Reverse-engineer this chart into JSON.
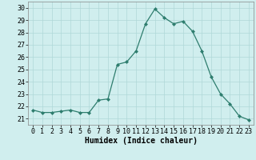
{
  "x": [
    0,
    1,
    2,
    3,
    4,
    5,
    6,
    7,
    8,
    9,
    10,
    11,
    12,
    13,
    14,
    15,
    16,
    17,
    18,
    19,
    20,
    21,
    22,
    23
  ],
  "y": [
    21.7,
    21.5,
    21.5,
    21.6,
    21.7,
    21.5,
    21.5,
    22.5,
    22.6,
    25.4,
    25.6,
    26.5,
    28.7,
    29.9,
    29.2,
    28.7,
    28.9,
    28.1,
    26.5,
    24.4,
    23.0,
    22.2,
    21.2,
    20.9
  ],
  "xlabel": "Humidex (Indice chaleur)",
  "xlim": [
    -0.5,
    23.5
  ],
  "ylim": [
    20.5,
    30.5
  ],
  "yticks": [
    21,
    22,
    23,
    24,
    25,
    26,
    27,
    28,
    29,
    30
  ],
  "xticks": [
    0,
    1,
    2,
    3,
    4,
    5,
    6,
    7,
    8,
    9,
    10,
    11,
    12,
    13,
    14,
    15,
    16,
    17,
    18,
    19,
    20,
    21,
    22,
    23
  ],
  "line_color": "#2e7d6e",
  "marker": "D",
  "marker_size": 2.0,
  "bg_color": "#d0eeee",
  "grid_color": "#b0d8d8",
  "label_fontsize": 7,
  "tick_fontsize": 6
}
